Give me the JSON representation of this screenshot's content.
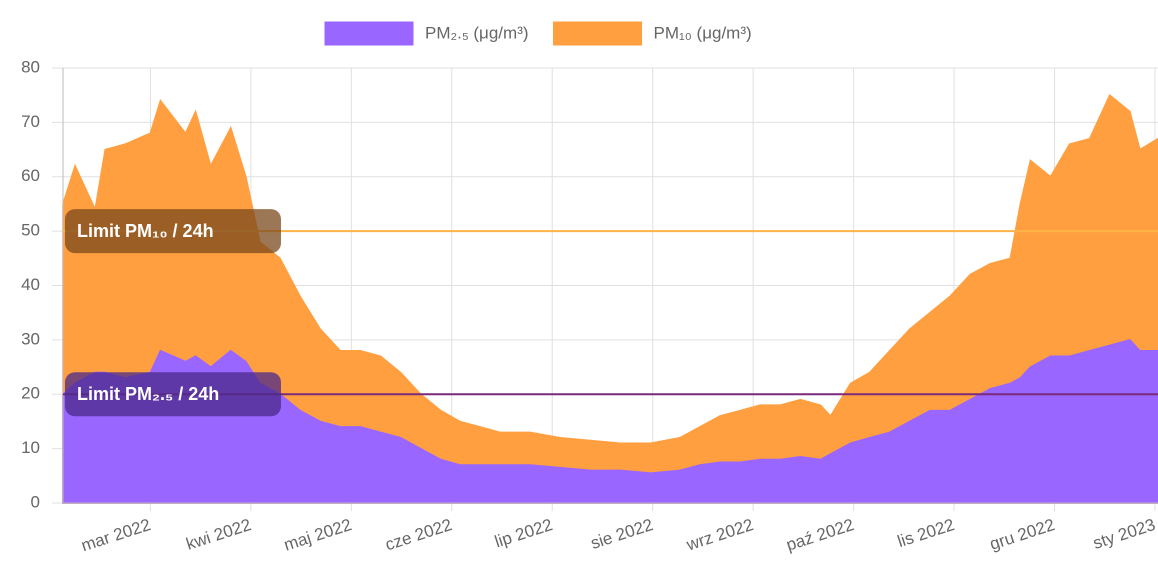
{
  "chart_data": {
    "type": "area",
    "x": [
      0.13,
      0.25,
      0.45,
      0.55,
      0.75,
      1.0,
      1.1,
      1.35,
      1.45,
      1.6,
      1.8,
      1.95,
      2.09,
      2.29,
      2.49,
      2.69,
      2.89,
      3.09,
      3.29,
      3.49,
      3.69,
      3.89,
      4.08,
      4.28,
      4.48,
      4.78,
      5.08,
      5.38,
      5.68,
      5.98,
      6.27,
      6.47,
      6.67,
      6.87,
      7.07,
      7.27,
      7.47,
      7.67,
      7.77,
      7.97,
      8.16,
      8.36,
      8.56,
      8.76,
      8.96,
      9.16,
      9.36,
      9.56,
      9.66,
      9.76,
      9.96,
      10.15,
      10.35,
      10.55,
      10.75,
      10.85,
      11.03
    ],
    "series": [
      {
        "name": "PM₁₀ (μg/m³)",
        "color": "#ff9f40",
        "values": [
          55,
          62,
          54,
          65,
          66,
          68,
          74,
          68,
          72,
          62,
          69,
          60,
          48,
          45,
          38,
          32,
          28,
          28,
          27,
          24,
          20,
          17,
          15,
          14,
          13,
          13,
          12,
          11.5,
          11,
          11,
          12,
          14,
          16,
          17,
          18,
          18,
          19,
          18,
          16,
          22,
          24,
          28,
          32,
          35,
          38,
          42,
          44,
          45,
          55,
          63,
          60,
          66,
          67,
          75,
          72,
          65,
          67
        ]
      },
      {
        "name": "PM₂.₅ (μg/m³)",
        "color": "#9966ff",
        "values": [
          20,
          22,
          24,
          24,
          23,
          24,
          28,
          26,
          27,
          25,
          28,
          26,
          22,
          20,
          17,
          15,
          14,
          14,
          13,
          12,
          10,
          8,
          7,
          7,
          7,
          7,
          6.5,
          6,
          6,
          5.5,
          6,
          7,
          7.5,
          7.5,
          8,
          8,
          8.5,
          8,
          9,
          11,
          12,
          13,
          15,
          17,
          17,
          19,
          21,
          22,
          23,
          25,
          27,
          27,
          28,
          29,
          30,
          28,
          28
        ]
      }
    ],
    "legend_order": [
      1,
      0
    ],
    "xlim": [
      0.13,
      11.03
    ],
    "xticks": [
      {
        "value": 1,
        "label": "mar 2022"
      },
      {
        "value": 2,
        "label": "kwi 2022"
      },
      {
        "value": 3,
        "label": "maj 2022"
      },
      {
        "value": 4,
        "label": "cze 2022"
      },
      {
        "value": 5,
        "label": "lip 2022"
      },
      {
        "value": 6,
        "label": "sie 2022"
      },
      {
        "value": 7,
        "label": "wrz 2022"
      },
      {
        "value": 8,
        "label": "paź 2022"
      },
      {
        "value": 9,
        "label": "lis 2022"
      },
      {
        "value": 10,
        "label": "gru 2022"
      },
      {
        "value": 11,
        "label": "sty 2023"
      }
    ],
    "ylim": [
      0,
      80
    ],
    "yticks": [
      0,
      10,
      20,
      30,
      40,
      50,
      60,
      70,
      80
    ],
    "grid": true,
    "legend": "top",
    "annotations": [
      {
        "label": "Limit PM₁₀ / 24h",
        "value": 50,
        "color": "#ffb347",
        "box_color": "#7a4a1e"
      },
      {
        "label": "Limit PM₂.₅ / 24h",
        "value": 20,
        "color": "#7b2a7b",
        "box_color": "#4b2a8a"
      }
    ]
  }
}
